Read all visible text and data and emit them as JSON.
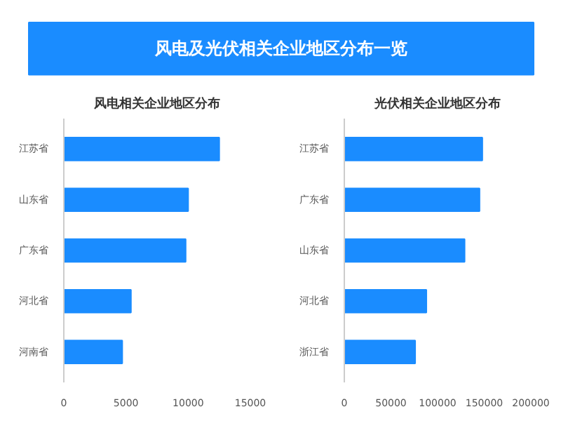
{
  "chart_data": [
    {
      "type": "other",
      "title": "风电及光伏相关企业地区分布一览",
      "color": "#1a8cff"
    },
    {
      "type": "bar",
      "orientation": "horizontal",
      "title": "风电相关企业地区分布",
      "categories": [
        "江苏省",
        "山东省",
        "广东省",
        "河北省",
        "河南省"
      ],
      "values": [
        12500,
        10000,
        9800,
        5400,
        4700
      ],
      "color": "#1a8cff",
      "xlim": [
        0,
        15000
      ],
      "xticks": [
        0,
        5000,
        10000,
        15000
      ],
      "grid": false
    },
    {
      "type": "bar",
      "orientation": "horizontal",
      "title": "光伏相关企业地区分布",
      "categories": [
        "江苏省",
        "广东省",
        "山东省",
        "河北省",
        "浙江省"
      ],
      "values": [
        148000,
        145000,
        129000,
        88000,
        76000
      ],
      "color": "#1a8cff",
      "xlim": [
        0,
        200000
      ],
      "xticks": [
        0,
        50000,
        100000,
        150000,
        200000
      ],
      "grid": false
    }
  ]
}
